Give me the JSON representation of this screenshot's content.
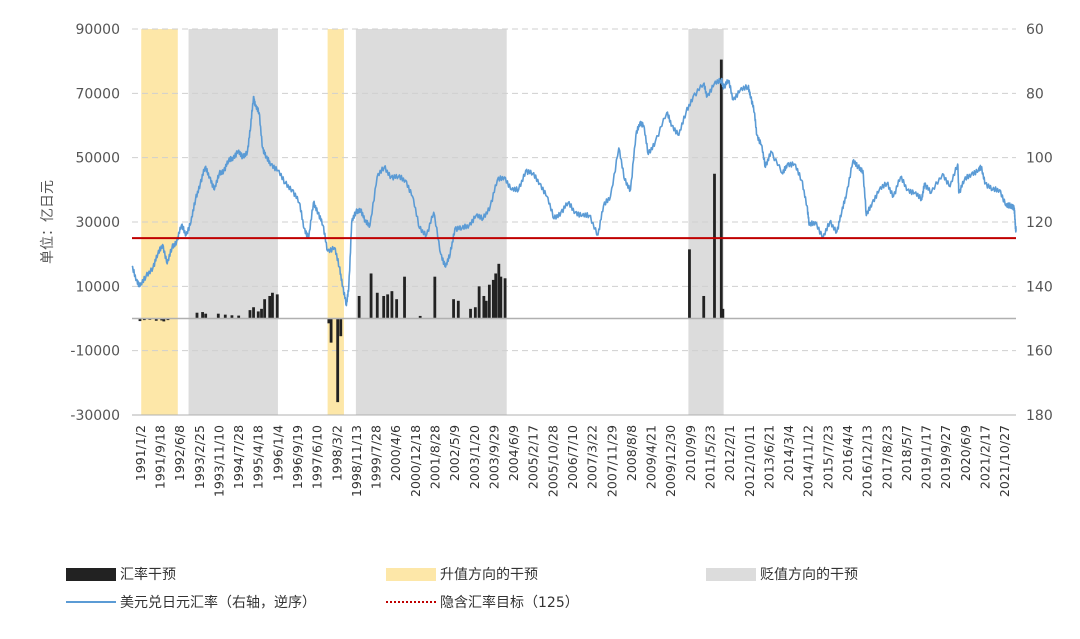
{
  "chart_data": {
    "type": "bar+line",
    "title": "",
    "ylabel_left": "单位：亿日元",
    "ylabel_right": "",
    "left_axis": {
      "min": -30000,
      "max": 90000,
      "ticks": [
        90000,
        70000,
        50000,
        30000,
        10000,
        -10000,
        -30000
      ],
      "tick_labels": [
        "90000",
        "70000",
        "50000",
        "30000",
        "10000",
        "-10000",
        "-30000"
      ]
    },
    "right_axis": {
      "min": 60,
      "max": 180,
      "inverted": true,
      "ticks": [
        60,
        80,
        100,
        120,
        140,
        160,
        180
      ],
      "tick_labels": [
        "60",
        "80",
        "100",
        "120",
        "140",
        "160",
        "180"
      ]
    },
    "x_range": [
      "1991-01-02",
      "2022-03-31"
    ],
    "x_tick_labels": [
      "1991/1/2",
      "1991/9/18",
      "1992/6/8",
      "1993/2/25",
      "1993/11/10",
      "1994/7/28",
      "1995/4/18",
      "1996/1/4",
      "1996/9/19",
      "1997/6/10",
      "1998/3/2",
      "1998/11/13",
      "1999/7/28",
      "2000/4/6",
      "2000/12/18",
      "2001/8/28",
      "2002/5/9",
      "2003/1/20",
      "2003/9/29",
      "2004/6/9",
      "2005/2/17",
      "2005/10/28",
      "2006/7/10",
      "2007/3/22",
      "2007/11/29",
      "2008/8/8",
      "2009/4/21",
      "2009/12/30",
      "2010/9/9",
      "2011/5/23",
      "2012/2/1",
      "2012/10/11",
      "2013/6/21",
      "2014/3/4",
      "2014/11/12",
      "2015/7/23",
      "2016/4/4",
      "2016/12/13",
      "2017/8/23",
      "2018/5/7",
      "2019/1/17",
      "2019/9/27",
      "2020/6/9",
      "2021/2/17",
      "2021/10/27"
    ],
    "grid": true,
    "legend_placement": "bottom",
    "colors": {
      "intervention": "#222222",
      "appreciation": "#FDE7A8",
      "depreciation": "#DCDCDC",
      "usdjpy": "#5B9BD5",
      "target": "#C00000"
    },
    "legend": {
      "intervention": "汇率干预",
      "appreciation": "升值方向的干预",
      "depreciation": "贬值方向的干预",
      "usdjpy": "美元兑日元汇率（右轴，逆序）",
      "target": "隐含汇率目标（125）"
    },
    "target_line": {
      "value": 25000,
      "axis": "left"
    },
    "appreciation_bands": [
      {
        "start": "1991-05-01",
        "end": "1992-08-15"
      },
      {
        "start": "1997-12-01",
        "end": "1998-06-30"
      }
    ],
    "depreciation_bands": [
      {
        "start": "1993-01-01",
        "end": "1996-02-29"
      },
      {
        "start": "1998-12-01",
        "end": "2004-03-31"
      },
      {
        "start": "2010-09-01",
        "end": "2011-11-30"
      }
    ],
    "series": [
      {
        "name": "汇率干预",
        "type": "bar",
        "axis": "left",
        "points": [
          {
            "x": "1991-04-15",
            "y": -800
          },
          {
            "x": "1991-06-10",
            "y": -500
          },
          {
            "x": "1991-08-20",
            "y": -400
          },
          {
            "x": "1991-11-11",
            "y": -700
          },
          {
            "x": "1992-01-20",
            "y": -600
          },
          {
            "x": "1992-02-17",
            "y": -900
          },
          {
            "x": "1992-04-10",
            "y": -500
          },
          {
            "x": "1993-04-20",
            "y": 1800
          },
          {
            "x": "1993-07-01",
            "y": 2000
          },
          {
            "x": "1993-08-10",
            "y": 1500
          },
          {
            "x": "1994-01-20",
            "y": 1500
          },
          {
            "x": "1994-04-20",
            "y": 1200
          },
          {
            "x": "1994-07-15",
            "y": 1000
          },
          {
            "x": "1994-10-10",
            "y": 900
          },
          {
            "x": "1995-03-05",
            "y": 2600
          },
          {
            "x": "1995-04-20",
            "y": 3500
          },
          {
            "x": "1995-06-20",
            "y": 2200
          },
          {
            "x": "1995-08-01",
            "y": 3000
          },
          {
            "x": "1995-09-10",
            "y": 6000
          },
          {
            "x": "1995-11-15",
            "y": 7000
          },
          {
            "x": "1995-12-20",
            "y": 8000
          },
          {
            "x": "1996-02-20",
            "y": 7500
          },
          {
            "x": "1997-12-17",
            "y": -1500
          },
          {
            "x": "1998-04-10",
            "y": -26000
          },
          {
            "x": "1998-05-20",
            "y": -5500
          },
          {
            "x": "1998-01-15",
            "y": -7500
          },
          {
            "x": "1999-01-12",
            "y": 7000
          },
          {
            "x": "1999-06-15",
            "y": 14000
          },
          {
            "x": "1999-09-03",
            "y": 8000
          },
          {
            "x": "1999-11-25",
            "y": 7000
          },
          {
            "x": "2000-01-15",
            "y": 7500
          },
          {
            "x": "2000-03-10",
            "y": 8500
          },
          {
            "x": "2000-05-10",
            "y": 6000
          },
          {
            "x": "2000-08-20",
            "y": 13000
          },
          {
            "x": "2001-03-10",
            "y": 800
          },
          {
            "x": "2001-09-15",
            "y": 13000
          },
          {
            "x": "2002-05-15",
            "y": 6000
          },
          {
            "x": "2002-07-15",
            "y": 5500
          },
          {
            "x": "2002-12-20",
            "y": 3000
          },
          {
            "x": "2003-02-20",
            "y": 3500
          },
          {
            "x": "2003-04-10",
            "y": 10000
          },
          {
            "x": "2003-06-10",
            "y": 7000
          },
          {
            "x": "2003-07-10",
            "y": 5500
          },
          {
            "x": "2003-08-20",
            "y": 10500
          },
          {
            "x": "2003-10-10",
            "y": 12000
          },
          {
            "x": "2003-11-10",
            "y": 14000
          },
          {
            "x": "2003-12-20",
            "y": 17000
          },
          {
            "x": "2004-01-15",
            "y": 13000
          },
          {
            "x": "2004-03-10",
            "y": 12500
          },
          {
            "x": "2010-09-15",
            "y": 21500
          },
          {
            "x": "2011-03-18",
            "y": 7000
          },
          {
            "x": "2011-08-04",
            "y": 45000
          },
          {
            "x": "2011-10-31",
            "y": 80500
          },
          {
            "x": "2011-11-20",
            "y": 3000
          }
        ]
      },
      {
        "name": "美元兑日元汇率（右轴，逆序）",
        "type": "line",
        "axis": "right",
        "points": [
          {
            "x": "1991-01-02",
            "y": 134
          },
          {
            "x": "1991-03-01",
            "y": 138
          },
          {
            "x": "1991-04-15",
            "y": 140
          },
          {
            "x": "1991-07-01",
            "y": 137
          },
          {
            "x": "1991-10-01",
            "y": 134
          },
          {
            "x": "1991-12-01",
            "y": 130
          },
          {
            "x": "1992-02-01",
            "y": 127
          },
          {
            "x": "1992-04-01",
            "y": 133
          },
          {
            "x": "1992-06-01",
            "y": 128
          },
          {
            "x": "1992-08-01",
            "y": 126
          },
          {
            "x": "1992-10-01",
            "y": 121
          },
          {
            "x": "1992-12-01",
            "y": 124
          },
          {
            "x": "1993-02-01",
            "y": 120
          },
          {
            "x": "1993-04-01",
            "y": 113
          },
          {
            "x": "1993-06-01",
            "y": 108
          },
          {
            "x": "1993-08-01",
            "y": 103
          },
          {
            "x": "1993-10-01",
            "y": 106
          },
          {
            "x": "1993-12-01",
            "y": 110
          },
          {
            "x": "1994-02-01",
            "y": 105
          },
          {
            "x": "1994-04-01",
            "y": 104
          },
          {
            "x": "1994-06-01",
            "y": 101
          },
          {
            "x": "1994-08-01",
            "y": 100
          },
          {
            "x": "1994-10-01",
            "y": 98
          },
          {
            "x": "1994-12-01",
            "y": 100
          },
          {
            "x": "1995-02-01",
            "y": 98
          },
          {
            "x": "1995-03-15",
            "y": 90
          },
          {
            "x": "1995-04-19",
            "y": 81
          },
          {
            "x": "1995-05-15",
            "y": 84
          },
          {
            "x": "1995-07-01",
            "y": 86
          },
          {
            "x": "1995-08-15",
            "y": 97
          },
          {
            "x": "1995-10-01",
            "y": 100
          },
          {
            "x": "1995-12-01",
            "y": 102
          },
          {
            "x": "1996-03-01",
            "y": 104
          },
          {
            "x": "1996-06-01",
            "y": 108
          },
          {
            "x": "1996-09-01",
            "y": 110
          },
          {
            "x": "1996-12-01",
            "y": 114
          },
          {
            "x": "1997-02-01",
            "y": 122
          },
          {
            "x": "1997-04-01",
            "y": 125
          },
          {
            "x": "1997-06-01",
            "y": 114
          },
          {
            "x": "1997-08-01",
            "y": 117
          },
          {
            "x": "1997-10-01",
            "y": 121
          },
          {
            "x": "1997-12-01",
            "y": 129
          },
          {
            "x": "1998-03-01",
            "y": 128
          },
          {
            "x": "1998-05-01",
            "y": 134
          },
          {
            "x": "1998-06-15",
            "y": 140
          },
          {
            "x": "1998-08-01",
            "y": 146
          },
          {
            "x": "1998-09-01",
            "y": 140
          },
          {
            "x": "1998-10-08",
            "y": 120
          },
          {
            "x": "1998-12-01",
            "y": 117
          },
          {
            "x": "1999-02-01",
            "y": 116
          },
          {
            "x": "1999-04-01",
            "y": 120
          },
          {
            "x": "1999-06-01",
            "y": 121
          },
          {
            "x": "1999-09-01",
            "y": 106
          },
          {
            "x": "1999-12-01",
            "y": 103
          },
          {
            "x": "2000-03-01",
            "y": 106
          },
          {
            "x": "2000-06-01",
            "y": 106
          },
          {
            "x": "2000-09-01",
            "y": 107
          },
          {
            "x": "2000-12-01",
            "y": 112
          },
          {
            "x": "2001-03-01",
            "y": 122
          },
          {
            "x": "2001-06-01",
            "y": 124
          },
          {
            "x": "2001-09-01",
            "y": 117
          },
          {
            "x": "2001-12-01",
            "y": 130
          },
          {
            "x": "2002-02-01",
            "y": 134
          },
          {
            "x": "2002-04-01",
            "y": 130
          },
          {
            "x": "2002-06-01",
            "y": 122
          },
          {
            "x": "2002-09-01",
            "y": 122
          },
          {
            "x": "2002-12-01",
            "y": 121
          },
          {
            "x": "2003-03-01",
            "y": 118
          },
          {
            "x": "2003-06-01",
            "y": 119
          },
          {
            "x": "2003-09-01",
            "y": 115
          },
          {
            "x": "2003-12-01",
            "y": 107
          },
          {
            "x": "2004-03-01",
            "y": 106
          },
          {
            "x": "2004-06-01",
            "y": 110
          },
          {
            "x": "2004-09-01",
            "y": 110
          },
          {
            "x": "2004-12-01",
            "y": 104
          },
          {
            "x": "2005-03-01",
            "y": 105
          },
          {
            "x": "2005-06-01",
            "y": 108
          },
          {
            "x": "2005-09-01",
            "y": 112
          },
          {
            "x": "2005-12-01",
            "y": 119
          },
          {
            "x": "2006-03-01",
            "y": 117
          },
          {
            "x": "2006-06-01",
            "y": 114
          },
          {
            "x": "2006-09-01",
            "y": 117
          },
          {
            "x": "2006-12-01",
            "y": 118
          },
          {
            "x": "2007-03-01",
            "y": 118
          },
          {
            "x": "2007-06-22",
            "y": 124
          },
          {
            "x": "2007-09-01",
            "y": 115
          },
          {
            "x": "2007-12-01",
            "y": 112
          },
          {
            "x": "2008-03-17",
            "y": 97
          },
          {
            "x": "2008-06-01",
            "y": 107
          },
          {
            "x": "2008-08-15",
            "y": 110
          },
          {
            "x": "2008-10-24",
            "y": 93
          },
          {
            "x": "2008-12-15",
            "y": 89
          },
          {
            "x": "2009-02-01",
            "y": 90
          },
          {
            "x": "2009-04-01",
            "y": 99
          },
          {
            "x": "2009-07-01",
            "y": 95
          },
          {
            "x": "2009-11-26",
            "y": 86
          },
          {
            "x": "2010-02-01",
            "y": 90
          },
          {
            "x": "2010-05-01",
            "y": 93
          },
          {
            "x": "2010-08-01",
            "y": 86
          },
          {
            "x": "2010-11-01",
            "y": 81
          },
          {
            "x": "2011-03-17",
            "y": 77
          },
          {
            "x": "2011-05-01",
            "y": 81
          },
          {
            "x": "2011-08-01",
            "y": 77
          },
          {
            "x": "2011-10-31",
            "y": 76
          },
          {
            "x": "2011-12-01",
            "y": 78
          },
          {
            "x": "2012-02-01",
            "y": 76
          },
          {
            "x": "2012-04-01",
            "y": 82
          },
          {
            "x": "2012-07-01",
            "y": 79
          },
          {
            "x": "2012-10-11",
            "y": 78
          },
          {
            "x": "2012-11-15",
            "y": 81
          },
          {
            "x": "2012-12-31",
            "y": 86
          },
          {
            "x": "2013-02-01",
            "y": 93
          },
          {
            "x": "2013-04-01",
            "y": 96
          },
          {
            "x": "2013-05-22",
            "y": 103
          },
          {
            "x": "2013-08-01",
            "y": 98
          },
          {
            "x": "2013-12-31",
            "y": 105
          },
          {
            "x": "2014-03-01",
            "y": 102
          },
          {
            "x": "2014-06-01",
            "y": 102
          },
          {
            "x": "2014-09-01",
            "y": 107
          },
          {
            "x": "2014-11-12",
            "y": 115
          },
          {
            "x": "2014-12-08",
            "y": 121
          },
          {
            "x": "2015-03-01",
            "y": 120
          },
          {
            "x": "2015-06-05",
            "y": 125
          },
          {
            "x": "2015-09-01",
            "y": 120
          },
          {
            "x": "2015-12-01",
            "y": 123
          },
          {
            "x": "2016-02-01",
            "y": 117
          },
          {
            "x": "2016-04-04",
            "y": 111
          },
          {
            "x": "2016-06-24",
            "y": 101
          },
          {
            "x": "2016-09-01",
            "y": 103
          },
          {
            "x": "2016-11-01",
            "y": 104
          },
          {
            "x": "2016-12-15",
            "y": 118
          },
          {
            "x": "2017-03-01",
            "y": 114
          },
          {
            "x": "2017-06-01",
            "y": 110
          },
          {
            "x": "2017-09-08",
            "y": 108
          },
          {
            "x": "2017-12-01",
            "y": 112
          },
          {
            "x": "2018-03-01",
            "y": 106
          },
          {
            "x": "2018-06-01",
            "y": 110
          },
          {
            "x": "2018-09-01",
            "y": 111
          },
          {
            "x": "2018-12-01",
            "y": 113
          },
          {
            "x": "2019-01-03",
            "y": 108
          },
          {
            "x": "2019-04-01",
            "y": 111
          },
          {
            "x": "2019-08-26",
            "y": 105
          },
          {
            "x": "2019-12-01",
            "y": 109
          },
          {
            "x": "2020-03-09",
            "y": 102
          },
          {
            "x": "2020-03-24",
            "y": 111
          },
          {
            "x": "2020-06-01",
            "y": 107
          },
          {
            "x": "2020-09-01",
            "y": 105
          },
          {
            "x": "2020-12-01",
            "y": 104
          },
          {
            "x": "2021-01-05",
            "y": 103
          },
          {
            "x": "2021-03-01",
            "y": 108
          },
          {
            "x": "2021-06-01",
            "y": 110
          },
          {
            "x": "2021-09-01",
            "y": 110
          },
          {
            "x": "2021-11-24",
            "y": 115
          },
          {
            "x": "2022-01-04",
            "y": 115
          },
          {
            "x": "2022-02-15",
            "y": 115
          },
          {
            "x": "2022-03-08",
            "y": 116
          },
          {
            "x": "2022-03-18",
            "y": 119
          },
          {
            "x": "2022-03-28",
            "y": 123
          },
          {
            "x": "2022-03-31",
            "y": 122
          }
        ]
      }
    ]
  }
}
